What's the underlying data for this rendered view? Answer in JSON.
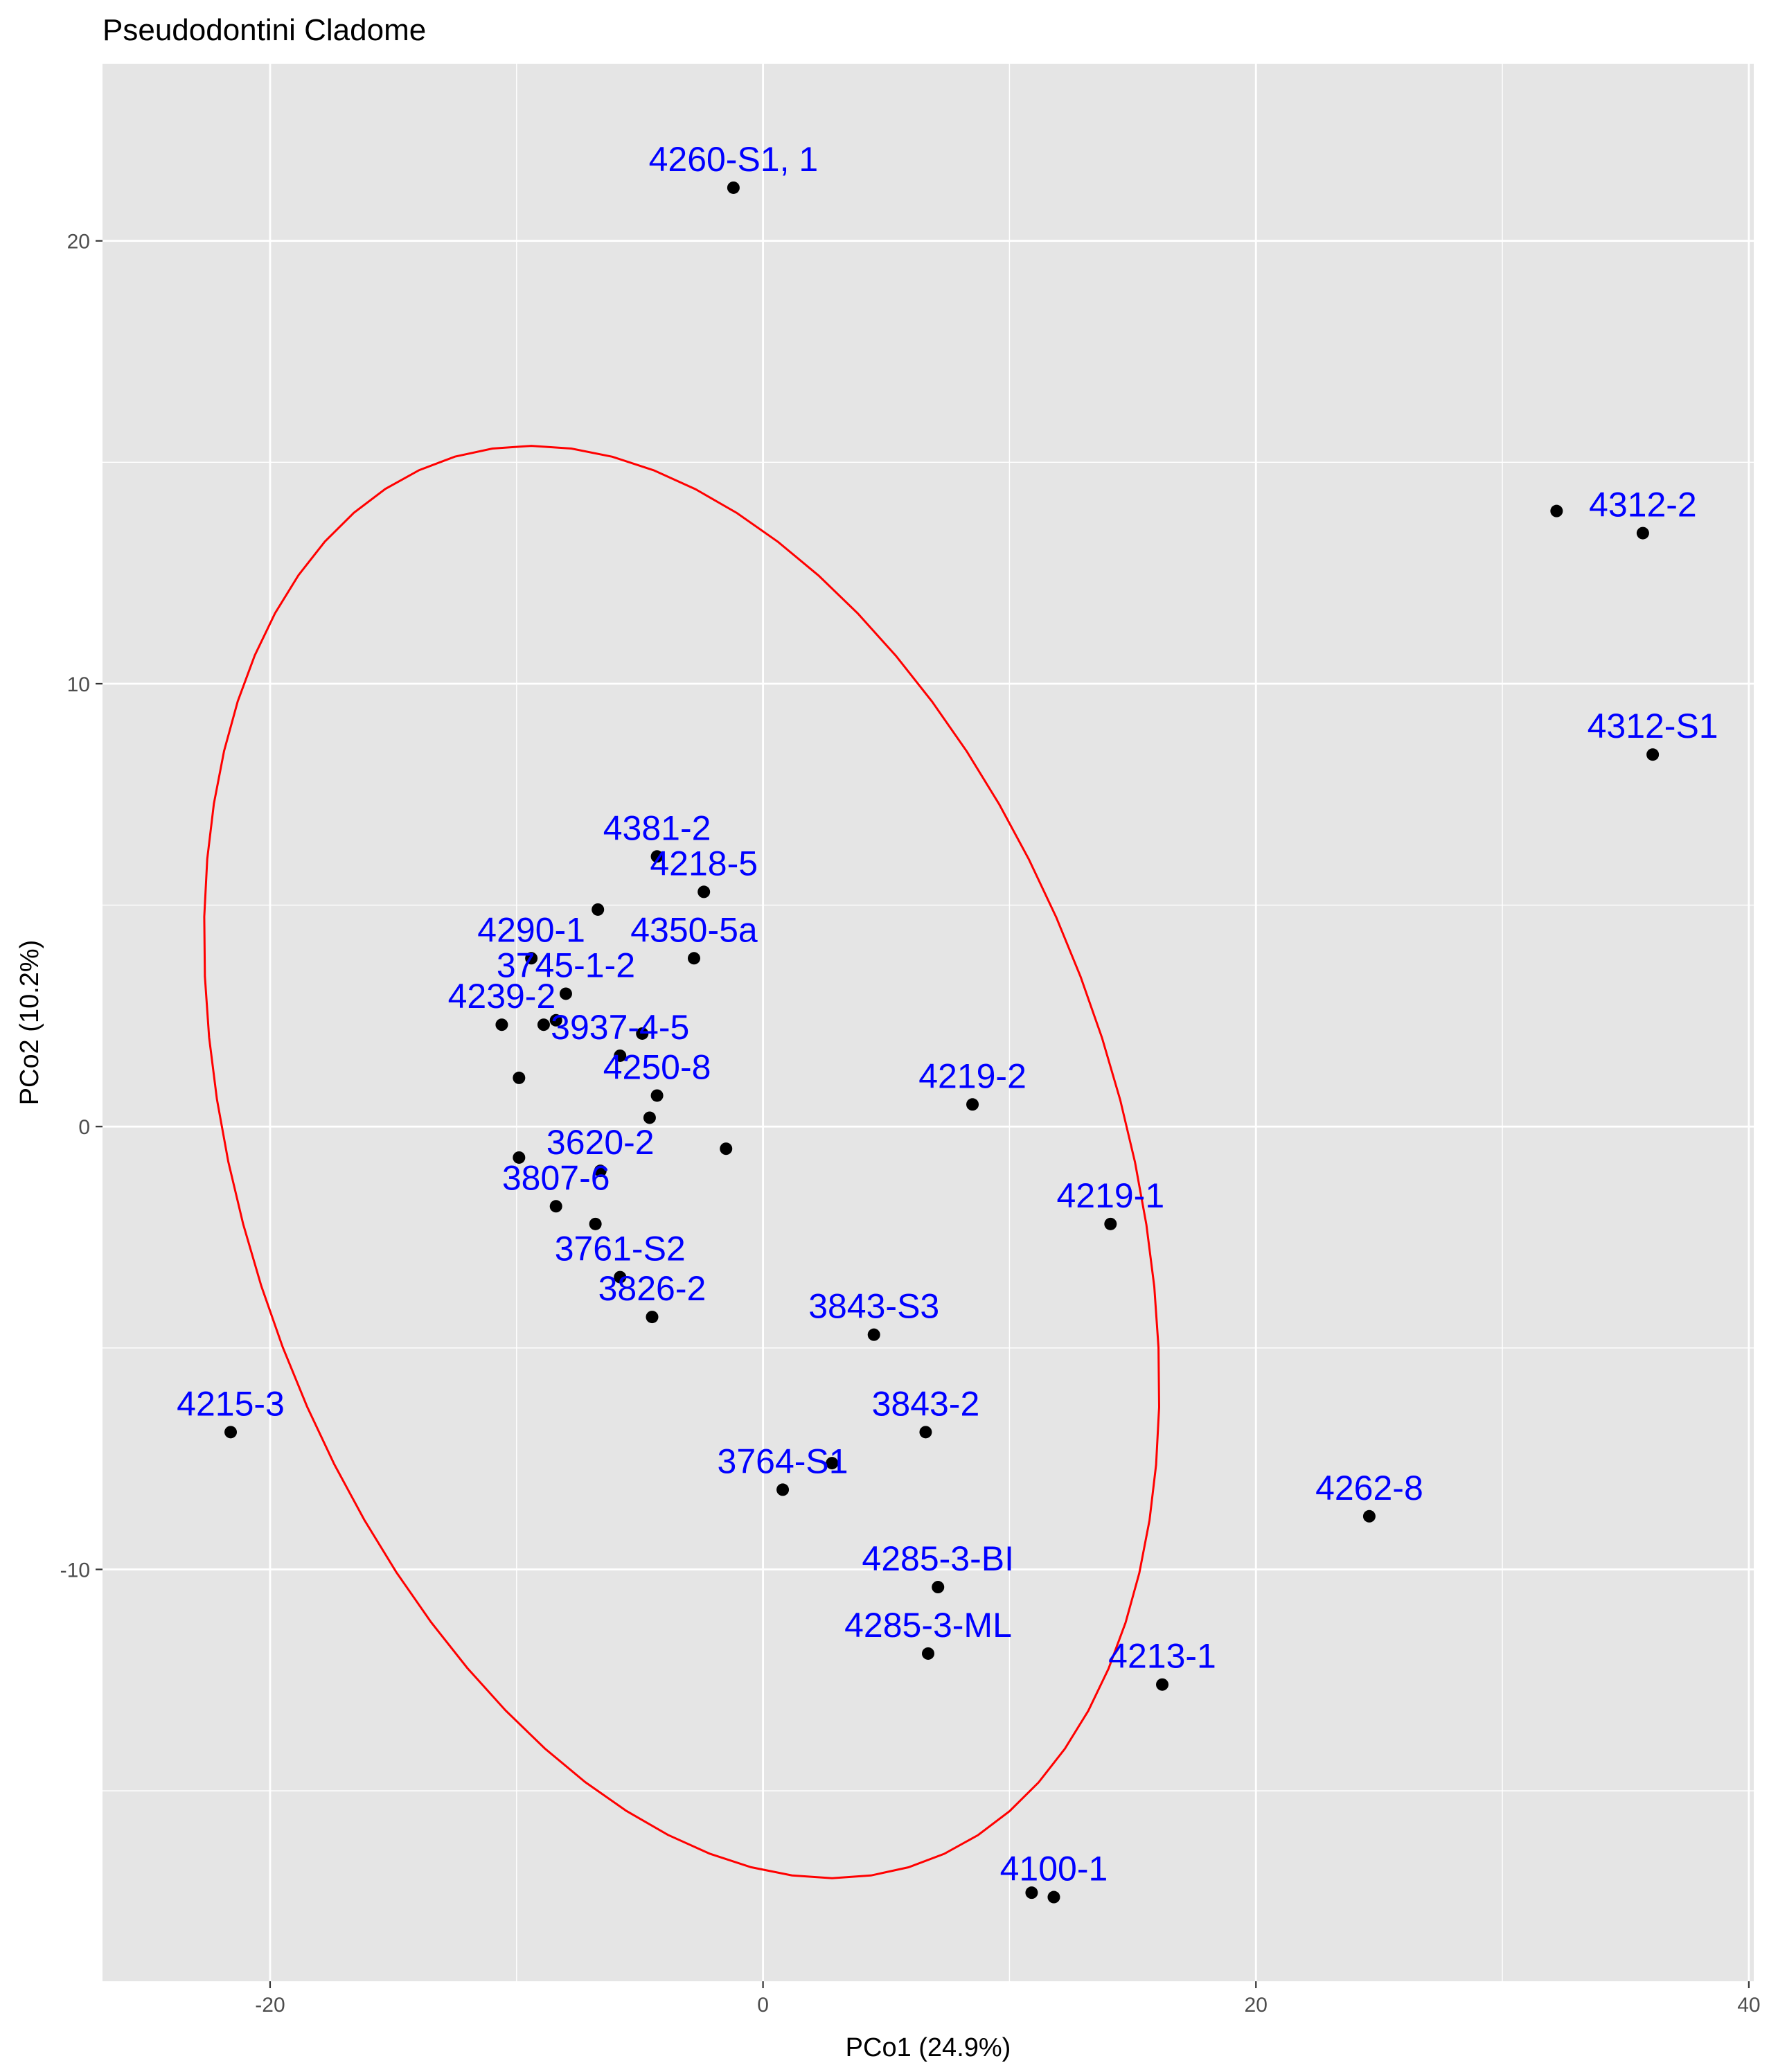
{
  "chart_data": {
    "type": "scatter",
    "title": "Pseudodontini Cladome",
    "xlabel": "PCo1 (24.9%)",
    "ylabel": "PCo2 (10.2%)",
    "xlim": [
      -26.8,
      40.2
    ],
    "ylim": [
      -19.3,
      24.0
    ],
    "x_ticks": [
      -20,
      0,
      20,
      40
    ],
    "y_ticks": [
      -10,
      0,
      10,
      20
    ],
    "x_tick_labels": [
      "-20",
      "0",
      "20",
      "40"
    ],
    "y_tick_labels": [
      "-10",
      "0",
      "10",
      "20"
    ],
    "grid": true,
    "background": "#e5e5e5",
    "grid_color": "#ffffff",
    "point_color": "#000000",
    "label_color": "#0000ff",
    "ellipse_color": "#ff0000",
    "points": [
      {
        "x": -1.2,
        "y": 21.2,
        "label": "4260-S1, 1"
      },
      {
        "x": 32.2,
        "y": 13.9,
        "label": ""
      },
      {
        "x": 35.7,
        "y": 13.4,
        "label": "4312-2"
      },
      {
        "x": 36.1,
        "y": 8.4,
        "label": "4312-S1"
      },
      {
        "x": -4.3,
        "y": 6.1,
        "label": "4381-2"
      },
      {
        "x": -2.4,
        "y": 5.3,
        "label": "4218-5"
      },
      {
        "x": -6.7,
        "y": 4.9,
        "label": ""
      },
      {
        "x": -2.8,
        "y": 3.8,
        "label": "4350-5a"
      },
      {
        "x": -9.4,
        "y": 3.8,
        "label": "4290-1"
      },
      {
        "x": -8.0,
        "y": 3.0,
        "label": "3745-1-2"
      },
      {
        "x": -10.6,
        "y": 2.3,
        "label": "4239-2"
      },
      {
        "x": -8.9,
        "y": 2.3,
        "label": ""
      },
      {
        "x": -8.4,
        "y": 2.4,
        "label": ""
      },
      {
        "x": -4.9,
        "y": 2.1,
        "label": ""
      },
      {
        "x": -5.8,
        "y": 1.6,
        "label": "3937-4-5"
      },
      {
        "x": -9.9,
        "y": 1.1,
        "label": ""
      },
      {
        "x": -4.3,
        "y": 0.7,
        "label": "4250-8"
      },
      {
        "x": -4.6,
        "y": 0.2,
        "label": ""
      },
      {
        "x": 8.5,
        "y": 0.5,
        "label": "4219-2"
      },
      {
        "x": -1.5,
        "y": -0.5,
        "label": ""
      },
      {
        "x": -6.6,
        "y": -1.0,
        "label": "3620-2"
      },
      {
        "x": -9.9,
        "y": -0.7,
        "label": ""
      },
      {
        "x": -8.4,
        "y": -1.8,
        "label": "3807-6"
      },
      {
        "x": 14.1,
        "y": -2.2,
        "label": "4219-1"
      },
      {
        "x": -6.8,
        "y": -2.2,
        "label": ""
      },
      {
        "x": -5.8,
        "y": -3.4,
        "label": "3761-S2"
      },
      {
        "x": -4.5,
        "y": -4.3,
        "label": "3826-2"
      },
      {
        "x": 4.5,
        "y": -4.7,
        "label": "3843-S3"
      },
      {
        "x": -21.6,
        "y": -6.9,
        "label": "4215-3"
      },
      {
        "x": 6.6,
        "y": -6.9,
        "label": "3843-2"
      },
      {
        "x": 2.8,
        "y": -7.6,
        "label": ""
      },
      {
        "x": 0.8,
        "y": -8.2,
        "label": "3764-S1"
      },
      {
        "x": 24.6,
        "y": -8.8,
        "label": "4262-8"
      },
      {
        "x": 7.1,
        "y": -10.4,
        "label": "4285-3-BI"
      },
      {
        "x": 6.7,
        "y": -11.9,
        "label": "4285-3-ML"
      },
      {
        "x": 16.2,
        "y": -12.6,
        "label": "4213-1"
      },
      {
        "x": 10.9,
        "y": -17.3,
        "label": ""
      },
      {
        "x": 11.8,
        "y": -17.4,
        "label": "4100-1"
      }
    ],
    "ellipse": {
      "center_x": -3.3,
      "center_y": -0.8,
      "rx": 20.8,
      "ry": 14.3,
      "rotation_deg": -30
    }
  }
}
